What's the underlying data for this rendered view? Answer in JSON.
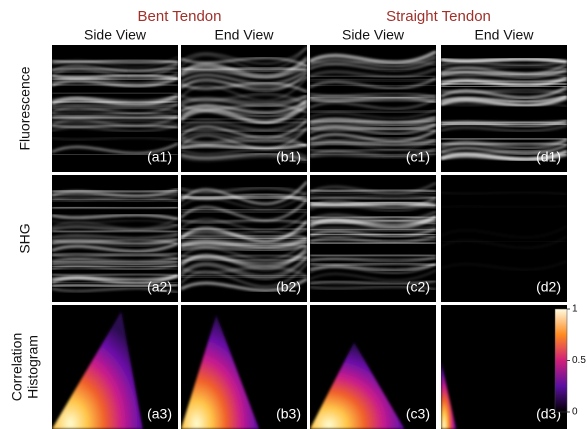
{
  "groups": [
    "Bent Tendon",
    "Straight Tendon"
  ],
  "columns": [
    "Side View",
    "End View",
    "Side View",
    "End View"
  ],
  "rows": [
    [
      "Fluorescence"
    ],
    [
      "SHG"
    ],
    [
      "Correlation",
      "Histogram"
    ]
  ],
  "panels": [
    [
      "(a1)",
      "(b1)",
      "(c1)",
      "(d1)"
    ],
    [
      "(a2)",
      "(b2)",
      "(c2)",
      "(d2)"
    ],
    [
      "(a3)",
      "(b3)",
      "(c3)",
      "(d3)"
    ]
  ],
  "colorbar": {
    "ticks": [
      1,
      0.5,
      0
    ]
  }
}
